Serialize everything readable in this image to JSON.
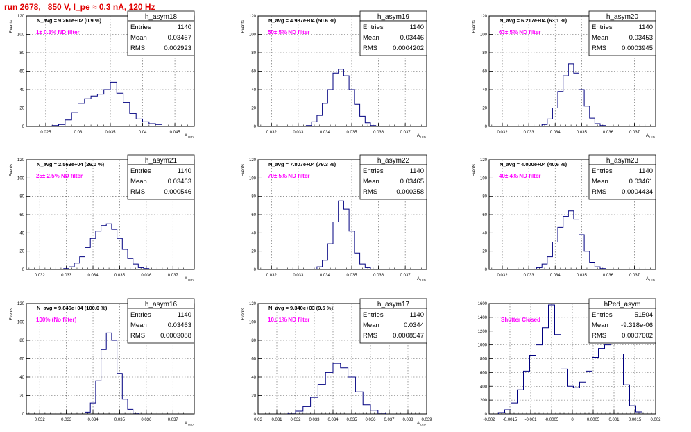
{
  "run_title": "run 2678,   850 V, I_pe ≈ 0.3 nA, 120 Hz",
  "colors": {
    "histogram": "#000080",
    "annotation": "#ff00ff",
    "title": "#e00000"
  },
  "stat_labels": {
    "entries": "Entries",
    "mean": "Mean",
    "rms": "RMS"
  },
  "chart_data": [
    {
      "type": "bar",
      "hist_name": "h_asym18",
      "nav": "N_avg = 9.261e+02 (0.9 %)",
      "filter": "1± 0.1% ND filter",
      "ylabel": "Events",
      "xlabel": "A_LED",
      "xlim": [
        0.022,
        0.048
      ],
      "ylim": [
        0,
        120
      ],
      "xticks": [
        0.025,
        0.03,
        0.035,
        0.04,
        0.045
      ],
      "xtick_labels": [
        "0.025",
        "0.03",
        "0.035",
        "0.04",
        "0.045"
      ],
      "yticks": [
        0,
        20,
        40,
        60,
        80,
        100,
        120
      ],
      "stats": {
        "entries": "1140",
        "mean": "0.03467",
        "rms": "0.002923"
      },
      "bins": [
        [
          0.0265,
          1
        ],
        [
          0.0275,
          2
        ],
        [
          0.0285,
          7
        ],
        [
          0.0295,
          15
        ],
        [
          0.0305,
          25
        ],
        [
          0.0315,
          30
        ],
        [
          0.0325,
          33
        ],
        [
          0.0335,
          35
        ],
        [
          0.0345,
          40
        ],
        [
          0.0355,
          48
        ],
        [
          0.0365,
          36
        ],
        [
          0.0375,
          26
        ],
        [
          0.0385,
          14
        ],
        [
          0.0395,
          8
        ],
        [
          0.0405,
          5
        ],
        [
          0.0415,
          3
        ],
        [
          0.0425,
          2
        ]
      ]
    },
    {
      "type": "bar",
      "hist_name": "h_asym19",
      "nav": "N_avg = 4.987e+04 (50.6 %)",
      "filter": "50± 5% ND filter",
      "ylabel": "Events",
      "xlabel": "A_LED",
      "xlim": [
        0.0315,
        0.0378
      ],
      "ylim": [
        0,
        120
      ],
      "xticks": [
        0.032,
        0.033,
        0.034,
        0.035,
        0.036,
        0.037
      ],
      "xtick_labels": [
        "0.032",
        "0.033",
        "0.034",
        "0.035",
        "0.036",
        "0.037"
      ],
      "yticks": [
        0,
        20,
        40,
        60,
        80,
        100,
        120
      ],
      "stats": {
        "entries": "1140",
        "mean": "0.03446",
        "rms": "0.0004202"
      },
      "bins": [
        [
          0.0334,
          1
        ],
        [
          0.0336,
          5
        ],
        [
          0.0338,
          12
        ],
        [
          0.034,
          25
        ],
        [
          0.0342,
          40
        ],
        [
          0.0344,
          58
        ],
        [
          0.0346,
          62
        ],
        [
          0.0348,
          55
        ],
        [
          0.035,
          40
        ],
        [
          0.0352,
          24
        ],
        [
          0.0354,
          11
        ],
        [
          0.0356,
          4
        ],
        [
          0.0358,
          1
        ]
      ]
    },
    {
      "type": "bar",
      "hist_name": "h_asym20",
      "nav": "N_avg = 6.217e+04 (63.1 %)",
      "filter": "63± 5% ND filter",
      "ylabel": "Events",
      "xlabel": "A_LED",
      "xlim": [
        0.0315,
        0.0378
      ],
      "ylim": [
        0,
        120
      ],
      "xticks": [
        0.032,
        0.033,
        0.034,
        0.035,
        0.036,
        0.037
      ],
      "xtick_labels": [
        "0.032",
        "0.033",
        "0.034",
        "0.035",
        "0.036",
        "0.037"
      ],
      "yticks": [
        0,
        20,
        40,
        60,
        80,
        100,
        120
      ],
      "stats": {
        "entries": "1140",
        "mean": "0.03453",
        "rms": "0.0003945"
      },
      "bins": [
        [
          0.0336,
          2
        ],
        [
          0.0338,
          8
        ],
        [
          0.034,
          20
        ],
        [
          0.0342,
          38
        ],
        [
          0.0344,
          55
        ],
        [
          0.0346,
          68
        ],
        [
          0.0348,
          58
        ],
        [
          0.035,
          40
        ],
        [
          0.0352,
          22
        ],
        [
          0.0354,
          9
        ],
        [
          0.0356,
          3
        ],
        [
          0.0358,
          1
        ]
      ]
    },
    {
      "type": "bar",
      "hist_name": "h_asym21",
      "nav": "N_avg = 2.563e+04 (26.0 %)",
      "filter": "25± 2.5% ND filter",
      "ylabel": "Events",
      "xlabel": "A_LED",
      "xlim": [
        0.0315,
        0.0378
      ],
      "ylim": [
        0,
        120
      ],
      "xticks": [
        0.032,
        0.033,
        0.034,
        0.035,
        0.036,
        0.037
      ],
      "xtick_labels": [
        "0.032",
        "0.033",
        "0.034",
        "0.035",
        "0.036",
        "0.037"
      ],
      "yticks": [
        0,
        20,
        40,
        60,
        80,
        100,
        120
      ],
      "stats": {
        "entries": "1140",
        "mean": "0.03463",
        "rms": "0.000546"
      },
      "bins": [
        [
          0.033,
          1
        ],
        [
          0.0332,
          3
        ],
        [
          0.0334,
          7
        ],
        [
          0.0336,
          14
        ],
        [
          0.0338,
          24
        ],
        [
          0.034,
          34
        ],
        [
          0.0342,
          42
        ],
        [
          0.0344,
          48
        ],
        [
          0.0346,
          50
        ],
        [
          0.0348,
          44
        ],
        [
          0.035,
          34
        ],
        [
          0.0352,
          22
        ],
        [
          0.0354,
          12
        ],
        [
          0.0356,
          6
        ],
        [
          0.0358,
          2
        ],
        [
          0.036,
          1
        ]
      ]
    },
    {
      "type": "bar",
      "hist_name": "h_asym22",
      "nav": "N_avg = 7.807e+04 (79.3 %)",
      "filter": "79± 5% ND filter",
      "ylabel": "Events",
      "xlabel": "A_LED",
      "xlim": [
        0.0315,
        0.0378
      ],
      "ylim": [
        0,
        120
      ],
      "xticks": [
        0.032,
        0.033,
        0.034,
        0.035,
        0.036,
        0.037
      ],
      "xtick_labels": [
        "0.032",
        "0.033",
        "0.034",
        "0.035",
        "0.036",
        "0.037"
      ],
      "yticks": [
        0,
        20,
        40,
        60,
        80,
        100,
        120
      ],
      "stats": {
        "entries": "1140",
        "mean": "0.03465",
        "rms": "0.000358"
      },
      "bins": [
        [
          0.0338,
          3
        ],
        [
          0.034,
          10
        ],
        [
          0.0342,
          28
        ],
        [
          0.0344,
          52
        ],
        [
          0.0346,
          75
        ],
        [
          0.0348,
          66
        ],
        [
          0.035,
          42
        ],
        [
          0.0352,
          18
        ],
        [
          0.0354,
          6
        ],
        [
          0.0356,
          2
        ]
      ]
    },
    {
      "type": "bar",
      "hist_name": "h_asym23",
      "nav": "N_avg = 4.000e+04 (40.6 %)",
      "filter": "40± 4% ND filter",
      "ylabel": "Events",
      "xlabel": "A_LED",
      "xlim": [
        0.0315,
        0.0378
      ],
      "ylim": [
        0,
        120
      ],
      "xticks": [
        0.032,
        0.033,
        0.034,
        0.035,
        0.036,
        0.037
      ],
      "xtick_labels": [
        "0.032",
        "0.033",
        "0.034",
        "0.035",
        "0.036",
        "0.037"
      ],
      "yticks": [
        0,
        20,
        40,
        60,
        80,
        100,
        120
      ],
      "stats": {
        "entries": "1140",
        "mean": "0.03461",
        "rms": "0.0004434"
      },
      "bins": [
        [
          0.0334,
          2
        ],
        [
          0.0336,
          6
        ],
        [
          0.0338,
          14
        ],
        [
          0.034,
          30
        ],
        [
          0.0342,
          46
        ],
        [
          0.0344,
          58
        ],
        [
          0.0346,
          64
        ],
        [
          0.0348,
          55
        ],
        [
          0.035,
          38
        ],
        [
          0.0352,
          20
        ],
        [
          0.0354,
          8
        ],
        [
          0.0356,
          3
        ],
        [
          0.0358,
          1
        ]
      ]
    },
    {
      "type": "bar",
      "hist_name": "h_asym16",
      "nav": "N_avg = 9.846e+04 (100.0 %)",
      "filter": "100% (No filter)",
      "ylabel": "Events",
      "xlabel": "A_LED",
      "xlim": [
        0.0315,
        0.0378
      ],
      "ylim": [
        0,
        120
      ],
      "xticks": [
        0.032,
        0.033,
        0.034,
        0.035,
        0.036,
        0.037
      ],
      "xtick_labels": [
        "0.032",
        "0.033",
        "0.034",
        "0.035",
        "0.036",
        "0.037"
      ],
      "yticks": [
        0,
        20,
        40,
        60,
        80,
        100,
        120
      ],
      "stats": {
        "entries": "1140",
        "mean": "0.03463",
        "rms": "0.0003088"
      },
      "bins": [
        [
          0.0338,
          2
        ],
        [
          0.034,
          12
        ],
        [
          0.0342,
          36
        ],
        [
          0.0344,
          70
        ],
        [
          0.0346,
          88
        ],
        [
          0.0348,
          80
        ],
        [
          0.035,
          44
        ],
        [
          0.0352,
          16
        ],
        [
          0.0354,
          5
        ],
        [
          0.0356,
          1
        ]
      ]
    },
    {
      "type": "bar",
      "hist_name": "h_asym17",
      "nav": "N_avg = 9.340e+03 (9.5 %)",
      "filter": "10± 1% ND filter",
      "ylabel": "Events",
      "xlabel": "A_LED",
      "xlim": [
        0.03,
        0.039
      ],
      "ylim": [
        0,
        120
      ],
      "xticks": [
        0.03,
        0.031,
        0.032,
        0.033,
        0.034,
        0.035,
        0.036,
        0.037,
        0.038,
        0.039
      ],
      "xtick_labels": [
        "0.03",
        "0.031",
        "0.032",
        "0.033",
        "0.034",
        "0.035",
        "0.036",
        "0.037",
        "0.038",
        "0.039"
      ],
      "yticks": [
        0,
        20,
        40,
        60,
        80,
        100,
        120
      ],
      "stats": {
        "entries": "1140",
        "mean": "0.0344",
        "rms": "0.0008547"
      },
      "bins": [
        [
          0.0318,
          1
        ],
        [
          0.0322,
          3
        ],
        [
          0.0326,
          8
        ],
        [
          0.033,
          18
        ],
        [
          0.0334,
          32
        ],
        [
          0.0338,
          45
        ],
        [
          0.0342,
          55
        ],
        [
          0.0346,
          50
        ],
        [
          0.035,
          40
        ],
        [
          0.0354,
          24
        ],
        [
          0.0358,
          10
        ],
        [
          0.0362,
          4
        ],
        [
          0.0366,
          1
        ]
      ]
    },
    {
      "type": "bar",
      "hist_name": "hPed_asym",
      "nav": "",
      "filter": "Shutter Closed",
      "ylabel": "",
      "xlabel": "",
      "xlim": [
        -0.002,
        0.002
      ],
      "ylim": [
        0,
        1600
      ],
      "xticks": [
        -0.002,
        -0.0015,
        -0.001,
        -0.0005,
        0,
        0.0005,
        0.001,
        0.0015,
        0.002
      ],
      "xtick_labels": [
        "-0.002",
        "-0.0015",
        "-0.001",
        "-0.0005",
        "0",
        "0.0005",
        "0.001",
        "0.0015",
        "0.002"
      ],
      "yticks": [
        0,
        200,
        400,
        600,
        800,
        1000,
        1200,
        1400,
        1600
      ],
      "stats": {
        "entries": "51504",
        "mean": "-9.318e-06",
        "rms": "0.0007602"
      },
      "bins": [
        [
          -0.0017,
          20
        ],
        [
          -0.00155,
          60
        ],
        [
          -0.0014,
          160
        ],
        [
          -0.00125,
          350
        ],
        [
          -0.0011,
          620
        ],
        [
          -0.00095,
          850
        ],
        [
          -0.0008,
          1000
        ],
        [
          -0.00065,
          1250
        ],
        [
          -0.0005,
          1580
        ],
        [
          -0.00035,
          1150
        ],
        [
          -0.0002,
          650
        ],
        [
          -5e-05,
          400
        ],
        [
          0.0001,
          380
        ],
        [
          0.00025,
          460
        ],
        [
          0.0004,
          620
        ],
        [
          0.00055,
          820
        ],
        [
          0.0007,
          950
        ],
        [
          0.00085,
          1000
        ],
        [
          0.001,
          1040
        ],
        [
          0.00115,
          870
        ],
        [
          0.0013,
          420
        ],
        [
          0.00145,
          120
        ],
        [
          0.0016,
          30
        ]
      ]
    }
  ]
}
